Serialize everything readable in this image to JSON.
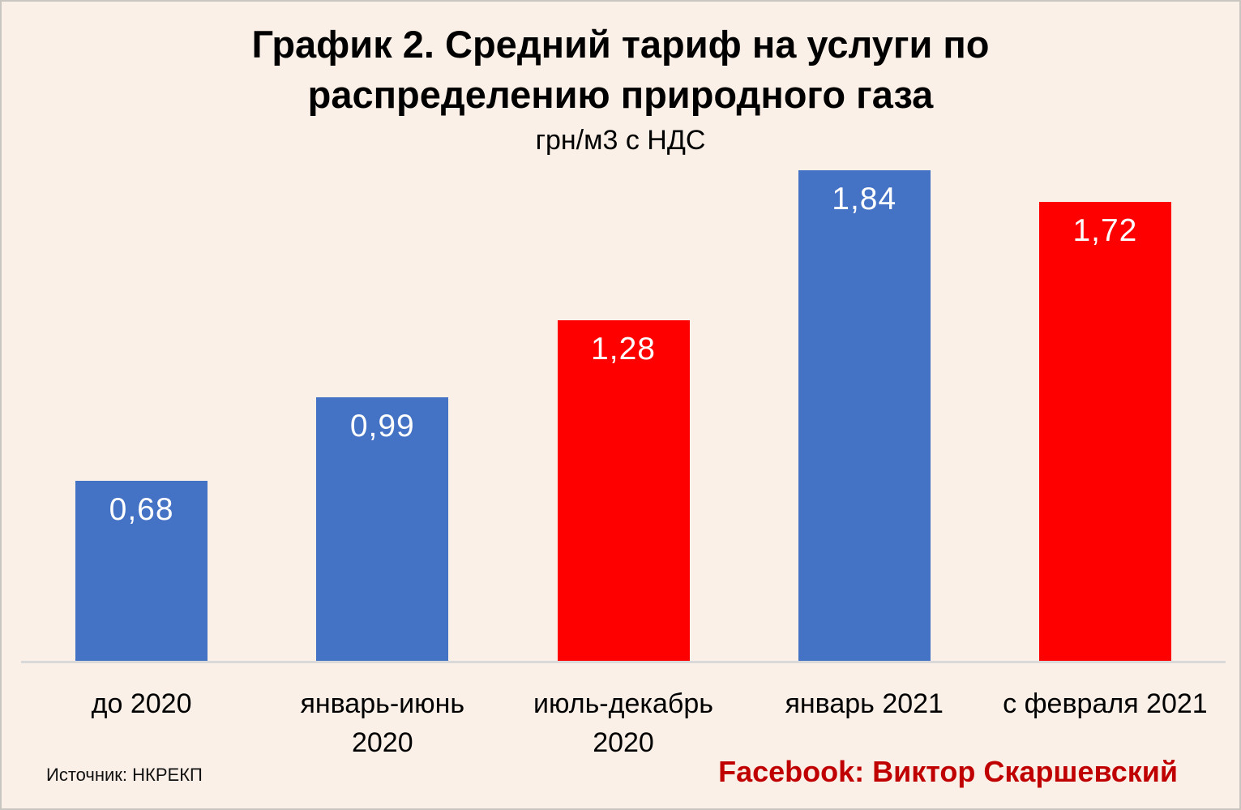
{
  "chart_data": {
    "type": "bar",
    "title": "График 2. Средний тариф на услуги по распределению природного газа",
    "title_lines": [
      "График 2. Средний тариф на услуги по",
      "распределению природного газа"
    ],
    "subtitle": "грн/м3 с НДС",
    "categories": [
      "до 2020",
      "январь-июнь 2020",
      "июль-декабрь 2020",
      "январь 2021",
      "с февраля 2021"
    ],
    "category_lines": [
      [
        "до 2020"
      ],
      [
        "январь-июнь",
        "2020"
      ],
      [
        "июль-декабрь",
        "2020"
      ],
      [
        "январь 2021"
      ],
      [
        "с февраля 2021"
      ]
    ],
    "values": [
      0.68,
      0.99,
      1.28,
      1.84,
      1.72
    ],
    "value_labels": [
      "0,68",
      "0,99",
      "1,28",
      "1,84",
      "1,72"
    ],
    "bar_colors": [
      "#4472C4",
      "#4472C4",
      "#FE0000",
      "#4472C4",
      "#FE0000"
    ],
    "ylim": [
      0,
      2
    ],
    "grid": false,
    "legend": false,
    "xlabel": "",
    "ylabel": "",
    "colors": {
      "blue_bar": "#4472C4",
      "red_bar": "#FE0000",
      "background": "#FAF0E7",
      "axis_line": "#D9D9D9",
      "title_text": "#000000",
      "value_label_text": "#FFFFFF"
    }
  },
  "footer": {
    "source": "Источник: НКРЕКП",
    "credit": "Facebook: Виктор Скаршевский",
    "credit_color": "#C00000"
  }
}
